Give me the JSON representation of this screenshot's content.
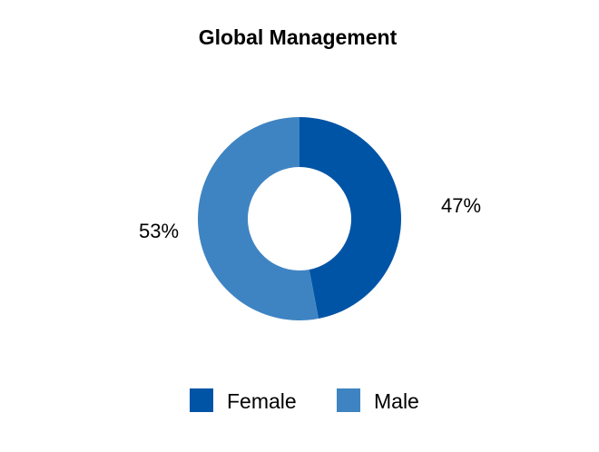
{
  "chart_data": {
    "type": "pie",
    "variant": "donut",
    "title": "Global Management",
    "slices": [
      {
        "label": "Female",
        "value": 47,
        "display": "47%",
        "color": "#0054a6"
      },
      {
        "label": "Male",
        "value": 53,
        "display": "53%",
        "color": "#3f84c2"
      }
    ],
    "legend": {
      "position": "bottom",
      "entries": [
        "Female",
        "Male"
      ]
    }
  }
}
